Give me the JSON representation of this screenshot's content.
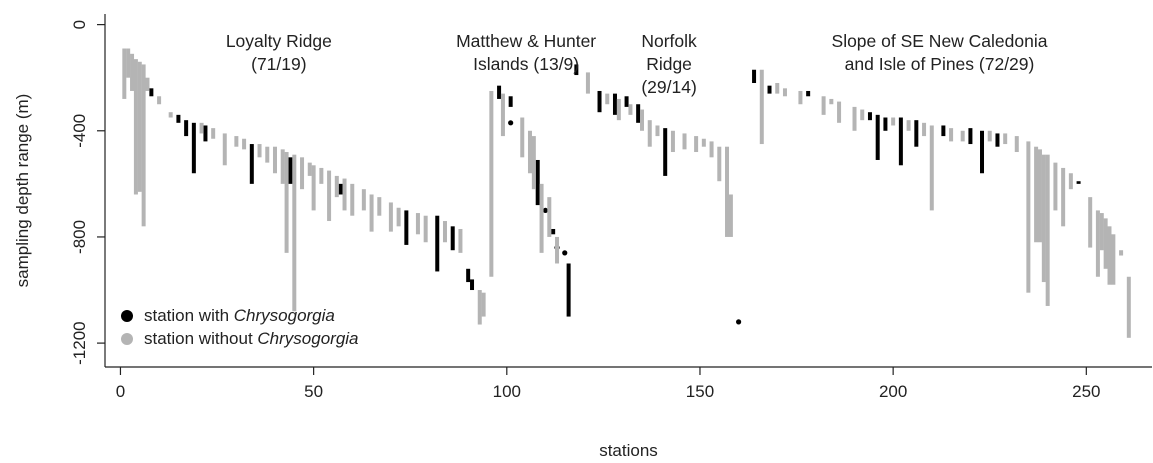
{
  "chart_data": {
    "type": "bar",
    "title": "",
    "xlabel": "stations",
    "ylabel": "sampling depth range (m)",
    "xlim": [
      -4,
      267
    ],
    "ylim": [
      -1290,
      40
    ],
    "xticks": [
      0,
      50,
      100,
      150,
      200,
      250
    ],
    "yticks": [
      0,
      -400,
      -800,
      -1200
    ],
    "regions": [
      {
        "name": "Loyalty Ridge",
        "counts": "(71/19)",
        "x": 41
      },
      {
        "name": "Matthew & Hunter",
        "name2": "Islands",
        "counts": "(13/9)",
        "x": 105
      },
      {
        "name": "Norfolk",
        "name2": "Ridge",
        "counts": "(29/14)",
        "x": 142
      },
      {
        "name": "Slope of SE New Caledonia",
        "name2": "and Isle of Pines",
        "counts": "(72/29)",
        "x": 212
      }
    ],
    "legend": {
      "position": "bottom-left",
      "prefix": "station with ",
      "with_label": "Chrysogorgia",
      "prefix2": "station without ",
      "without_label": "Chrysogorgia"
    },
    "colors": {
      "with": "#000000",
      "without": "#b4b4b4"
    },
    "series": [
      {
        "name": "station with Chrysogorgia",
        "color": "#000000",
        "segments": [
          [
            8,
            -240,
            -270
          ],
          [
            15,
            -340,
            -370
          ],
          [
            17,
            -360,
            -420
          ],
          [
            19,
            -370,
            -560
          ],
          [
            22,
            -380,
            -440
          ],
          [
            34,
            -450,
            -600
          ],
          [
            44,
            -500,
            -600
          ],
          [
            57,
            -600,
            -640
          ],
          [
            74,
            -700,
            -830
          ],
          [
            82,
            -720,
            -930
          ],
          [
            86,
            -760,
            -850
          ],
          [
            90,
            -920,
            -970
          ],
          [
            91,
            -960,
            -1000
          ],
          [
            98,
            -230,
            -280
          ],
          [
            101,
            -270,
            -310
          ],
          [
            108,
            -510,
            -680
          ],
          [
            112,
            -770,
            -790
          ],
          [
            116,
            -900,
            -1100
          ],
          [
            118,
            -150,
            -190
          ],
          [
            124,
            -250,
            -330
          ],
          [
            128,
            -260,
            -340
          ],
          [
            131,
            -270,
            -310
          ],
          [
            134,
            -300,
            -370
          ],
          [
            141,
            -390,
            -570
          ],
          [
            164,
            -170,
            -220
          ],
          [
            168,
            -230,
            -260
          ],
          [
            178,
            -250,
            -270
          ],
          [
            194,
            -330,
            -360
          ],
          [
            196,
            -340,
            -510
          ],
          [
            198,
            -350,
            -400
          ],
          [
            202,
            -350,
            -530
          ],
          [
            206,
            -360,
            -460
          ],
          [
            213,
            -380,
            -420
          ],
          [
            220,
            -390,
            -450
          ],
          [
            223,
            -400,
            -560
          ],
          [
            227,
            -410,
            -460
          ],
          [
            248,
            -590,
            -600
          ]
        ],
        "points": [
          [
            160,
            -1120
          ],
          [
            115,
            -860
          ],
          [
            113,
            -840
          ],
          [
            101,
            -370
          ],
          [
            110,
            -700
          ]
        ]
      },
      {
        "name": "station without Chrysogorgia",
        "color": "#b4b4b4",
        "segments": [
          [
            1,
            -90,
            -280
          ],
          [
            2,
            -90,
            -200
          ],
          [
            3,
            -110,
            -250
          ],
          [
            4,
            -130,
            -640
          ],
          [
            5,
            -140,
            -630
          ],
          [
            6,
            -150,
            -760
          ],
          [
            7,
            -200,
            -250
          ],
          [
            10,
            -270,
            -300
          ],
          [
            13,
            -330,
            -350
          ],
          [
            21,
            -370,
            -410
          ],
          [
            24,
            -390,
            -430
          ],
          [
            27,
            -410,
            -530
          ],
          [
            30,
            -420,
            -460
          ],
          [
            32,
            -430,
            -470
          ],
          [
            36,
            -450,
            -500
          ],
          [
            38,
            -460,
            -520
          ],
          [
            40,
            -460,
            -560
          ],
          [
            42,
            -470,
            -600
          ],
          [
            43,
            -480,
            -860
          ],
          [
            45,
            -490,
            -1080
          ],
          [
            47,
            -500,
            -620
          ],
          [
            49,
            -520,
            -570
          ],
          [
            50,
            -530,
            -700
          ],
          [
            52,
            -540,
            -600
          ],
          [
            54,
            -550,
            -740
          ],
          [
            56,
            -570,
            -650
          ],
          [
            58,
            -580,
            -700
          ],
          [
            60,
            -600,
            -720
          ],
          [
            63,
            -620,
            -700
          ],
          [
            65,
            -640,
            -780
          ],
          [
            67,
            -650,
            -720
          ],
          [
            70,
            -670,
            -780
          ],
          [
            72,
            -690,
            -760
          ],
          [
            77,
            -710,
            -790
          ],
          [
            79,
            -720,
            -820
          ],
          [
            84,
            -740,
            -820
          ],
          [
            88,
            -770,
            -860
          ],
          [
            93,
            -1000,
            -1130
          ],
          [
            94,
            -1010,
            -1100
          ],
          [
            96,
            -250,
            -950
          ],
          [
            99,
            -260,
            -420
          ],
          [
            104,
            -350,
            -500
          ],
          [
            106,
            -400,
            -560
          ],
          [
            107,
            -420,
            -620
          ],
          [
            109,
            -600,
            -860
          ],
          [
            111,
            -650,
            -800
          ],
          [
            113,
            -800,
            -900
          ],
          [
            121,
            -180,
            -260
          ],
          [
            126,
            -260,
            -300
          ],
          [
            129,
            -280,
            -360
          ],
          [
            132,
            -300,
            -340
          ],
          [
            135,
            -320,
            -400
          ],
          [
            137,
            -360,
            -460
          ],
          [
            139,
            -380,
            -420
          ],
          [
            143,
            -400,
            -480
          ],
          [
            146,
            -410,
            -470
          ],
          [
            149,
            -420,
            -480
          ],
          [
            151,
            -430,
            -460
          ],
          [
            153,
            -440,
            -500
          ],
          [
            155,
            -460,
            -590
          ],
          [
            157,
            -460,
            -800
          ],
          [
            158,
            -640,
            -800
          ],
          [
            166,
            -170,
            -450
          ],
          [
            170,
            -220,
            -260
          ],
          [
            172,
            -240,
            -270
          ],
          [
            176,
            -250,
            -300
          ],
          [
            182,
            -270,
            -340
          ],
          [
            184,
            -280,
            -300
          ],
          [
            186,
            -290,
            -370
          ],
          [
            190,
            -310,
            -400
          ],
          [
            192,
            -320,
            -360
          ],
          [
            200,
            -350,
            -380
          ],
          [
            204,
            -360,
            -400
          ],
          [
            208,
            -370,
            -420
          ],
          [
            210,
            -380,
            -700
          ],
          [
            215,
            -390,
            -440
          ],
          [
            218,
            -400,
            -440
          ],
          [
            225,
            -400,
            -440
          ],
          [
            229,
            -410,
            -450
          ],
          [
            232,
            -420,
            -480
          ],
          [
            235,
            -440,
            -1010
          ],
          [
            237,
            -460,
            -820
          ],
          [
            238,
            -470,
            -820
          ],
          [
            239,
            -490,
            -970
          ],
          [
            240,
            -490,
            -1060
          ],
          [
            242,
            -520,
            -700
          ],
          [
            244,
            -540,
            -760
          ],
          [
            246,
            -560,
            -620
          ],
          [
            251,
            -650,
            -840
          ],
          [
            253,
            -700,
            -950
          ],
          [
            254,
            -710,
            -850
          ],
          [
            255,
            -730,
            -920
          ],
          [
            256,
            -760,
            -980
          ],
          [
            257,
            -790,
            -980
          ],
          [
            259,
            -850,
            -870
          ],
          [
            261,
            -950,
            -1180
          ]
        ],
        "points": []
      }
    ]
  }
}
